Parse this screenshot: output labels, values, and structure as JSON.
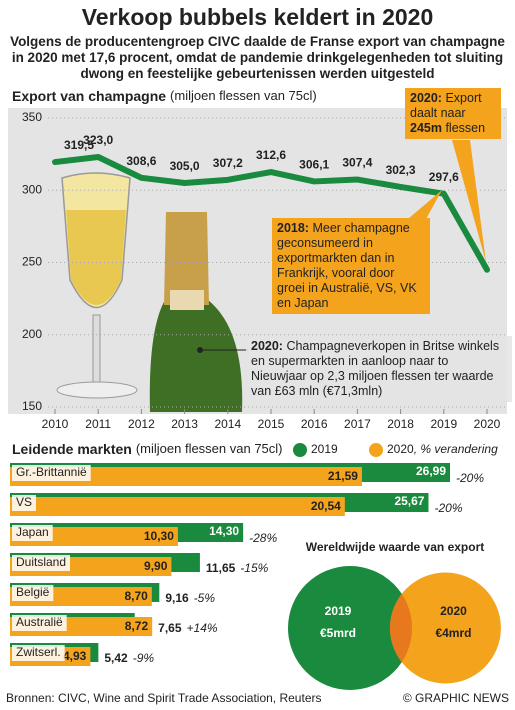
{
  "title": "Verkoop bubbels keldert in 2020",
  "subtitle": "Volgens de producentengroep CIVC daalde de Franse export van champagne in 2020 met 17,6 procent, omdat de pandemie drinkgelegenheden tot sluiting dwong en feestelijke gebeurtenissen werden uitgesteld",
  "chart_data": [
    {
      "type": "line",
      "title": "Export van champagne",
      "unit": "(miljoen flessen van 75cl)",
      "x": [
        2010,
        2011,
        2012,
        2013,
        2014,
        2015,
        2016,
        2017,
        2018,
        2019,
        2020
      ],
      "series": [
        {
          "name": "Export",
          "color": "#1a8a3e",
          "values": [
            319.5,
            323.0,
            308.6,
            305.0,
            307.2,
            312.6,
            306.1,
            307.4,
            302.3,
            297.6,
            245
          ],
          "value_labels": [
            "319,5",
            "323,0",
            "308,6",
            "305,0",
            "307,2",
            "312,6",
            "306,1",
            "307,4",
            "302,3",
            "297,6",
            null
          ]
        }
      ],
      "xlim": [
        2010,
        2020
      ],
      "xticks": [
        2010,
        2011,
        2012,
        2013,
        2014,
        2015,
        2016,
        2017,
        2018,
        2019,
        2020
      ],
      "ylim": [
        150,
        350
      ],
      "yticks": [
        150,
        200,
        250,
        300,
        350
      ],
      "grid": true,
      "annotations": [
        {
          "parts": [
            {
              "text": "2020:",
              "bold": true
            },
            {
              "text": " Export daalt naar ",
              "bold": false
            },
            {
              "text": "245m",
              "bold": true
            },
            {
              "text": " flessen",
              "bold": false
            }
          ]
        },
        {
          "parts": [
            {
              "text": "2018:",
              "bold": true
            },
            {
              "text": " Meer champagne geconsumeerd in exportmarkten dan in Frankrijk, vooral door groei in Australië, VS, VK en Japan",
              "bold": false
            }
          ]
        },
        {
          "parts": [
            {
              "text": "2020:",
              "bold": true
            },
            {
              "text": " Champagneverkopen in Britse winkels en supermarkten in aanloop naar to Nieuwjaar op 2,3 miljoen flessen ter waarde van £63 mln (€71,3mln)",
              "bold": false
            }
          ]
        }
      ]
    },
    {
      "type": "bar",
      "title": "Leidende markten",
      "unit": "(miljoen flessen van 75cl)",
      "change_legend": ", % verandering",
      "categories": [
        "Gr.-Brittannië",
        "VS",
        "Japan",
        "Duitsland",
        "België",
        "Australië",
        "Zwitserl."
      ],
      "series": [
        {
          "name": "2019",
          "color": "#1a8a3e",
          "values": [
            26.99,
            25.67,
            14.3,
            11.65,
            9.16,
            7.65,
            5.42
          ],
          "value_labels": [
            "26,99",
            "25,67",
            "14,30",
            "11,65",
            "9,16",
            "7,65",
            "5,42"
          ]
        },
        {
          "name": "2020",
          "color": "#f4a31c",
          "values": [
            21.59,
            20.54,
            10.3,
            9.9,
            8.7,
            8.72,
            4.93
          ],
          "value_labels": [
            "21,59",
            "20,54",
            "10,30",
            "9,90",
            "8,70",
            "8,72",
            "4,93"
          ]
        }
      ],
      "change": [
        -20,
        -20,
        -28,
        -15,
        -5,
        14,
        -9
      ],
      "change_labels": [
        "-20%",
        "-20%",
        "-28%",
        "-15%",
        "-5%",
        "+14%",
        "-9%"
      ]
    },
    {
      "type": "bubble",
      "title": "Wereldwijde waarde van export",
      "categories": [
        "2019",
        "2020"
      ],
      "values": [
        5,
        4
      ],
      "value_labels": [
        "€5mrd",
        "€4mrd"
      ],
      "colors": [
        "#1a8a3e",
        "#f4a31c"
      ]
    }
  ],
  "footer": {
    "source": "Bronnen: CIVC, Wine and Spirit Trade Association, Reuters",
    "credit": "© GRAPHIC NEWS"
  }
}
